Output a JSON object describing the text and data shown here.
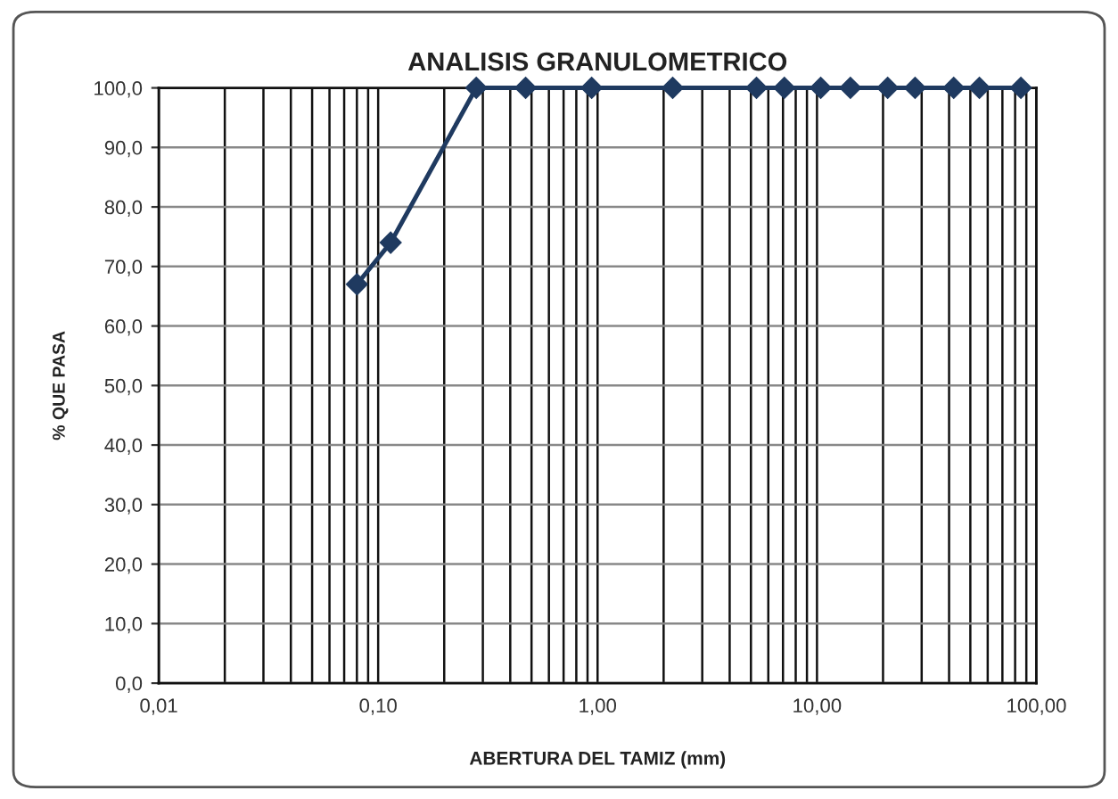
{
  "chart_data": {
    "type": "line",
    "title": "ANALISIS GRANULOMETRICO",
    "xlabel": "ABERTURA DEL TAMIZ (mm)",
    "ylabel": "% QUE PASA",
    "log": "x",
    "grid": true,
    "marker": "diamond",
    "line_style": "solid",
    "xlim": [
      0.01,
      100
    ],
    "ylim": [
      0,
      100
    ],
    "xticks": [
      {
        "value": 0.01,
        "label": "0,01"
      },
      {
        "value": 0.1,
        "label": "0,10"
      },
      {
        "value": 1,
        "label": "1,00"
      },
      {
        "value": 10,
        "label": "10,00"
      },
      {
        "value": 100,
        "label": "100,00"
      }
    ],
    "yticks": [
      {
        "value": 0,
        "label": "0,0"
      },
      {
        "value": 10,
        "label": "10,0"
      },
      {
        "value": 20,
        "label": "20,0"
      },
      {
        "value": 30,
        "label": "30,0"
      },
      {
        "value": 40,
        "label": "40,0"
      },
      {
        "value": 50,
        "label": "50,0"
      },
      {
        "value": 60,
        "label": "60,0"
      },
      {
        "value": 70,
        "label": "70,0"
      },
      {
        "value": 80,
        "label": "80,0"
      },
      {
        "value": 90,
        "label": "90,0"
      },
      {
        "value": 100,
        "label": "100,0"
      }
    ],
    "series": [
      {
        "color": "#1f3a60",
        "x": [
          0.08,
          0.114,
          0.28,
          0.47,
          0.94,
          2.2,
          5.3,
          7.1,
          10.4,
          14.2,
          21,
          28,
          42,
          55,
          85
        ],
        "values": [
          67,
          74,
          100,
          100,
          100,
          100,
          100,
          100,
          100,
          100,
          100,
          100,
          100,
          100,
          100
        ]
      }
    ]
  }
}
